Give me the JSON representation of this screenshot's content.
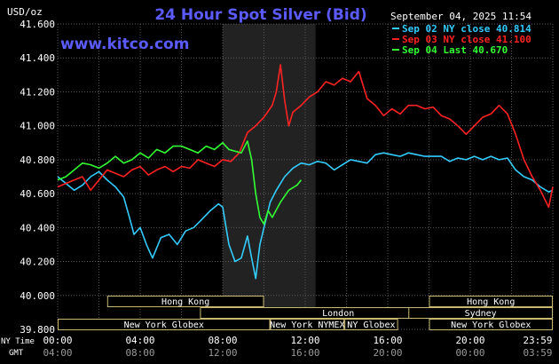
{
  "header": {
    "title": "24 Hour Spot Silver (Bid)",
    "unit_label": "USD/oz",
    "website": "www.kitco.com",
    "timestamp": "September 04, 2025 11:54"
  },
  "colors": {
    "background": "#000000",
    "grid": "#5a5a5a",
    "axis_text": "#ffffff",
    "title": "#5b5bff",
    "website": "#5b5bff",
    "highlight_band": "#222222",
    "session_bar": "#000000",
    "session_border": "#c8b870",
    "session_text": "#ffffff"
  },
  "chart_data": {
    "type": "line",
    "title": "24 Hour Spot Silver (Bid)",
    "ylabel": "USD/oz",
    "ylim": [
      39.8,
      41.6
    ],
    "yticks": [
      "41.600",
      "41.400",
      "41.200",
      "41.000",
      "40.800",
      "40.600",
      "40.400",
      "40.200",
      "40.000",
      "39.800"
    ],
    "ytick_values": [
      41.6,
      41.4,
      41.2,
      41.0,
      40.8,
      40.6,
      40.4,
      40.2,
      40.0,
      39.8
    ],
    "xlim": [
      0,
      24
    ],
    "x_unit": "hours since 00:00 NY time",
    "xticks_ny": [
      "00:00",
      "04:00",
      "08:00",
      "12:00",
      "16:00",
      "20:00",
      "23:59"
    ],
    "xticks_gmt": [
      "04:00",
      "08:00",
      "12:00",
      "16:00",
      "20:00",
      "00:00",
      "03:59"
    ],
    "xtick_hours": [
      0,
      4,
      8,
      12,
      16,
      20,
      24
    ],
    "xaxis_row_labels": [
      "NY Time",
      "GMT"
    ],
    "grid": true,
    "legend_position": "top-right",
    "highlight_range": [
      8,
      12.5
    ],
    "series": [
      {
        "name": "Sep 02 NY close 40.814",
        "color": "#33ccff",
        "x": [
          0,
          0.4,
          0.8,
          1.2,
          1.6,
          2.0,
          2.4,
          2.8,
          3.2,
          3.5,
          3.7,
          4.0,
          4.3,
          4.6,
          5.0,
          5.4,
          5.8,
          6.2,
          6.6,
          7.0,
          7.4,
          7.8,
          8.0,
          8.3,
          8.6,
          8.9,
          9.2,
          9.4,
          9.6,
          9.8,
          10.0,
          10.3,
          10.6,
          11.0,
          11.4,
          11.8,
          12.2,
          12.6,
          13.0,
          13.4,
          13.8,
          14.2,
          14.6,
          15.0,
          15.4,
          15.8,
          16.2,
          16.6,
          17.0,
          17.4,
          17.8,
          18.2,
          18.6,
          19.0,
          19.4,
          19.8,
          20.2,
          20.6,
          21.0,
          21.4,
          21.8,
          22.2,
          22.6,
          23.0,
          23.4,
          23.8,
          24.0
        ],
        "y": [
          40.7,
          40.66,
          40.62,
          40.65,
          40.7,
          40.73,
          40.68,
          40.64,
          40.58,
          40.45,
          40.36,
          40.4,
          40.3,
          40.22,
          40.34,
          40.36,
          40.3,
          40.38,
          40.4,
          40.45,
          40.5,
          40.54,
          40.52,
          40.3,
          40.2,
          40.22,
          40.35,
          40.22,
          40.1,
          40.3,
          40.4,
          40.55,
          40.62,
          40.7,
          40.75,
          40.78,
          40.77,
          40.79,
          40.78,
          40.74,
          40.77,
          40.8,
          40.79,
          40.78,
          40.83,
          40.84,
          40.83,
          40.82,
          40.84,
          40.83,
          40.82,
          40.82,
          40.82,
          40.79,
          40.81,
          40.8,
          40.82,
          40.8,
          40.82,
          40.8,
          40.81,
          40.74,
          40.7,
          40.68,
          40.64,
          40.61,
          40.62
        ]
      },
      {
        "name": "Sep 03 NY close 41.100",
        "color": "#ff2222",
        "x": [
          0,
          0.4,
          0.8,
          1.2,
          1.6,
          2.0,
          2.4,
          2.8,
          3.2,
          3.6,
          4.0,
          4.4,
          4.8,
          5.2,
          5.6,
          6.0,
          6.4,
          6.8,
          7.2,
          7.6,
          8.0,
          8.4,
          8.8,
          9.2,
          9.6,
          10.0,
          10.4,
          10.6,
          10.8,
          11.0,
          11.2,
          11.4,
          11.8,
          12.2,
          12.6,
          13.0,
          13.4,
          13.8,
          14.2,
          14.6,
          15.0,
          15.4,
          15.8,
          16.2,
          16.6,
          17.0,
          17.4,
          17.8,
          18.2,
          18.6,
          19.0,
          19.4,
          19.8,
          20.2,
          20.6,
          21.0,
          21.4,
          21.8,
          22.2,
          22.6,
          23.0,
          23.4,
          23.8,
          24.0
        ],
        "y": [
          40.64,
          40.66,
          40.68,
          40.7,
          40.62,
          40.68,
          40.74,
          40.72,
          40.7,
          40.74,
          40.76,
          40.71,
          40.74,
          40.76,
          40.73,
          40.76,
          40.75,
          40.8,
          40.78,
          40.76,
          40.8,
          40.79,
          40.84,
          40.96,
          41.0,
          41.05,
          41.12,
          41.2,
          41.36,
          41.15,
          41.0,
          41.08,
          41.12,
          41.17,
          41.2,
          41.26,
          41.24,
          41.28,
          41.26,
          41.32,
          41.16,
          41.12,
          41.06,
          41.1,
          41.07,
          41.12,
          41.12,
          41.1,
          41.11,
          41.06,
          41.04,
          41.0,
          40.95,
          41.0,
          41.05,
          41.07,
          41.12,
          41.07,
          40.95,
          40.8,
          40.7,
          40.62,
          40.52,
          40.64
        ]
      },
      {
        "name": "Sep 04 Last 40.670",
        "color": "#33ff33",
        "x": [
          0,
          0.4,
          0.8,
          1.2,
          1.6,
          2.0,
          2.4,
          2.8,
          3.2,
          3.6,
          4.0,
          4.4,
          4.8,
          5.2,
          5.6,
          6.0,
          6.4,
          6.8,
          7.2,
          7.6,
          8.0,
          8.3,
          8.6,
          8.9,
          9.2,
          9.4,
          9.6,
          9.8,
          10.0,
          10.2,
          10.4,
          10.8,
          11.2,
          11.6,
          11.8
        ],
        "y": [
          40.68,
          40.7,
          40.74,
          40.78,
          40.77,
          40.75,
          40.78,
          40.82,
          40.78,
          40.8,
          40.84,
          40.81,
          40.86,
          40.84,
          40.88,
          40.88,
          40.86,
          40.84,
          40.88,
          40.86,
          40.9,
          40.86,
          40.85,
          40.84,
          40.91,
          40.8,
          40.6,
          40.46,
          40.42,
          40.5,
          40.46,
          40.55,
          40.62,
          40.65,
          40.68
        ]
      }
    ],
    "sessions": [
      {
        "label": "Hong Kong",
        "start": 2.4,
        "end": 10.0,
        "row": 0
      },
      {
        "label": "London",
        "start": 6.9,
        "end": 20.3,
        "row": 1
      },
      {
        "label": "New York Globex",
        "start": 0.0,
        "end": 10.3,
        "row": 2
      },
      {
        "label": "New York NYMEX",
        "start": 10.3,
        "end": 13.9,
        "row": 2
      },
      {
        "label": "NY Globex",
        "start": 13.9,
        "end": 16.5,
        "row": 2
      },
      {
        "label": "Hong Kong",
        "start": 18.0,
        "end": 24.0,
        "row": 0
      },
      {
        "label": "Sydney",
        "start": 17.0,
        "end": 24.0,
        "row": 1
      },
      {
        "label": "New York Globex",
        "start": 18.0,
        "end": 24.0,
        "row": 2
      }
    ]
  }
}
